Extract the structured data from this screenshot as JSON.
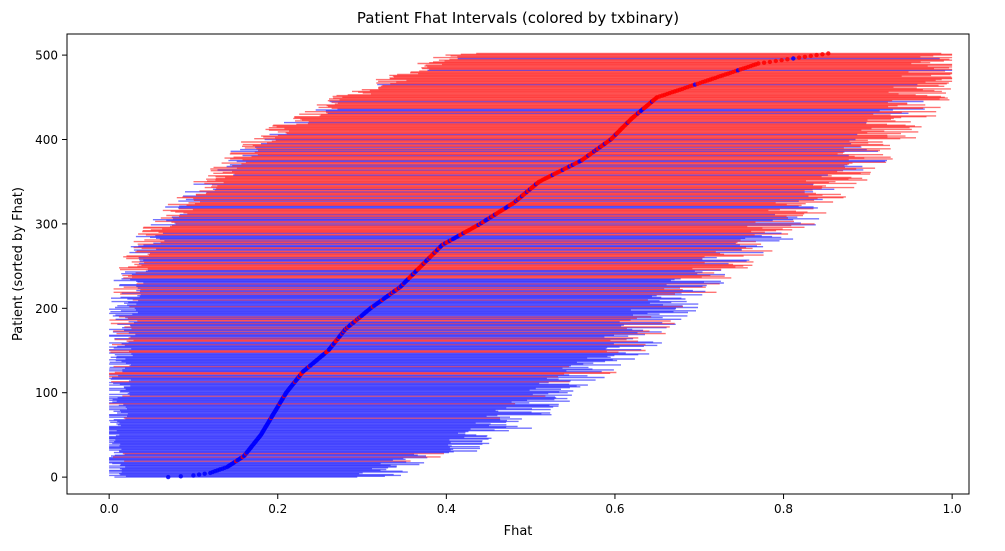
{
  "chart_data": {
    "type": "errorbar-interval",
    "title": "Patient Fhat Intervals (colored by txbinary)",
    "xlabel": "Fhat",
    "ylabel": "Patient (sorted by Fhat)",
    "xlim": [
      -0.05,
      1.02
    ],
    "ylim": [
      -20,
      525
    ],
    "xticks": [
      0.0,
      0.2,
      0.4,
      0.6,
      0.8,
      1.0
    ],
    "xtick_labels": [
      "0.0",
      "0.2",
      "0.4",
      "0.6",
      "0.8",
      "1.0"
    ],
    "yticks": [
      0,
      100,
      200,
      300,
      400,
      500
    ],
    "ytick_labels": [
      "0",
      "100",
      "200",
      "300",
      "400",
      "500"
    ],
    "grid": false,
    "n_patients": 503,
    "colors": {
      "txbinary_0": "#0000ff",
      "txbinary_1": "#ff0000"
    },
    "interval_alpha": 0.55,
    "point_alpha": 0.85,
    "fhat_profile": {
      "rank": [
        0,
        2,
        5,
        12,
        25,
        50,
        75,
        100,
        125,
        150,
        175,
        200,
        225,
        250,
        275,
        300,
        325,
        350,
        375,
        400,
        425,
        450,
        470,
        490,
        503
      ],
      "fhat": [
        0.07,
        0.1,
        0.12,
        0.14,
        0.16,
        0.18,
        0.195,
        0.21,
        0.23,
        0.26,
        0.28,
        0.31,
        0.345,
        0.37,
        0.395,
        0.44,
        0.48,
        0.51,
        0.56,
        0.595,
        0.62,
        0.65,
        0.71,
        0.77,
        0.86
      ]
    },
    "lower_profile": {
      "rank": [
        0,
        50,
        100,
        150,
        200,
        250,
        300,
        350,
        400,
        450,
        503
      ],
      "lower": [
        0.0,
        0.0,
        0.005,
        0.01,
        0.015,
        0.03,
        0.06,
        0.12,
        0.18,
        0.28,
        0.42
      ]
    },
    "upper_profile": {
      "rank": [
        0,
        50,
        100,
        150,
        200,
        250,
        300,
        350,
        400,
        450,
        503
      ],
      "upper": [
        0.31,
        0.45,
        0.53,
        0.61,
        0.66,
        0.73,
        0.8,
        0.86,
        0.92,
        0.96,
        1.0
      ]
    },
    "txbinary_fraction_1_by_rank": {
      "rank": [
        0,
        100,
        200,
        250,
        300,
        350,
        400,
        503
      ],
      "p": [
        0.05,
        0.1,
        0.35,
        0.5,
        0.6,
        0.75,
        0.85,
        0.9
      ]
    }
  }
}
